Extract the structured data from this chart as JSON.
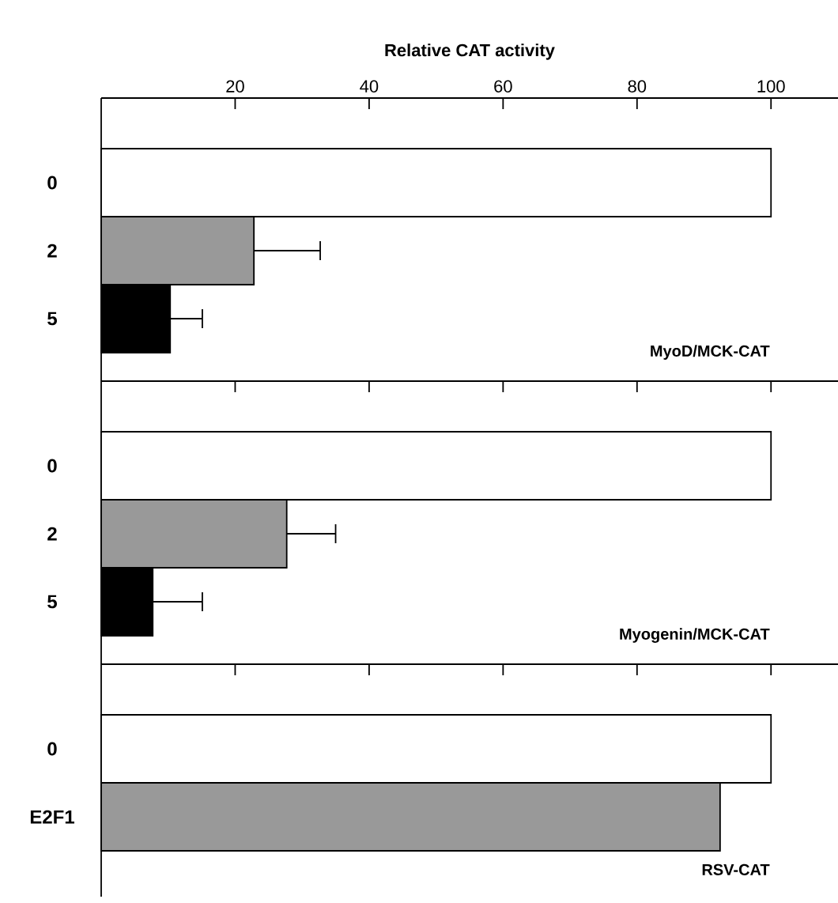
{
  "chart_data": [
    {
      "type": "bar",
      "orientation": "horizontal",
      "xlabel": "Relative CAT activity",
      "categories": [
        "0",
        "2",
        "5"
      ],
      "values": [
        100,
        22.8,
        10.3
      ],
      "colors": [
        "#ffffff",
        "#999999",
        "#000000"
      ],
      "errors": [
        null,
        [
          22.8,
          32.7
        ],
        [
          10.3,
          15.1
        ]
      ],
      "xlim": [
        0,
        110
      ],
      "xticks": [
        20,
        40,
        60,
        80,
        100
      ],
      "annotations": [
        "MyoD/MCK-CAT"
      ]
    },
    {
      "type": "bar",
      "orientation": "horizontal",
      "categories": [
        "0",
        "2",
        "5"
      ],
      "values": [
        100,
        27.7,
        7.7
      ],
      "colors": [
        "#ffffff",
        "#999999",
        "#000000"
      ],
      "errors": [
        null,
        [
          27.7,
          35.0
        ],
        [
          7.7,
          15.1
        ]
      ],
      "xlim": [
        0,
        110
      ],
      "xticks": [
        20,
        40,
        60,
        80,
        100
      ],
      "tick_labels": "y",
      "annotations": [
        "Myogenin/MCK-CAT"
      ]
    },
    {
      "type": "bar",
      "orientation": "horizontal",
      "categories": [
        "0",
        "E2F1"
      ],
      "values": [
        100,
        92.4
      ],
      "colors": [
        "#ffffff",
        "#999999"
      ],
      "xlim": [
        0,
        110
      ],
      "xticks": [
        20,
        40,
        60,
        80,
        100
      ],
      "tick_labels": "y",
      "annotations": [
        "RSV-CAT"
      ]
    }
  ]
}
